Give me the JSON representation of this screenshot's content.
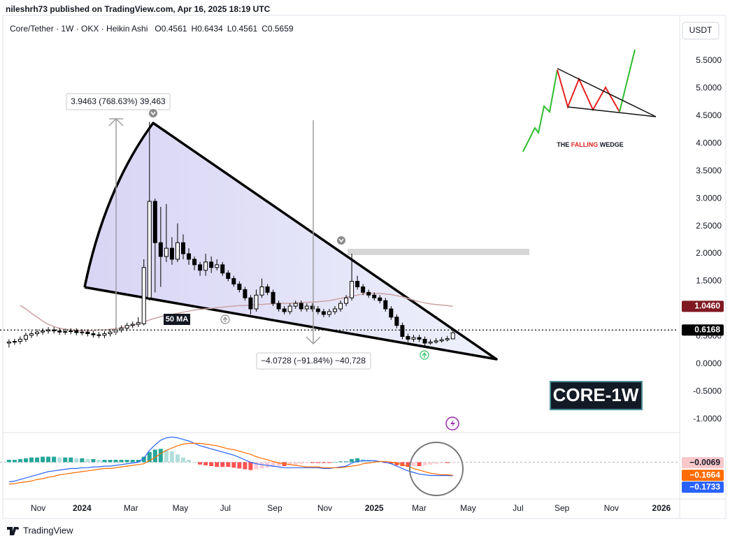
{
  "header": {
    "publisher": "nileshrh73 published on TradingView.com, Apr 16, 2025 18:19 UTC",
    "symbol": "Core/Tether · 1W · OKX · Heikin Ashi",
    "ohlc_letters": [
      "O",
      "H",
      "L",
      "C"
    ],
    "currency": "USDT",
    "footer": "TradingView"
  },
  "chart_data": [
    {
      "type": "candlestick",
      "x": [
        -13,
        -12,
        -11,
        -10,
        -9,
        -8,
        -7,
        -6,
        -5,
        -4,
        -3,
        -2,
        -1,
        0,
        1,
        2,
        3,
        4,
        5,
        6,
        7,
        8,
        9,
        10,
        11,
        12,
        13,
        14,
        15,
        16,
        17,
        18,
        19,
        20,
        21,
        22,
        23,
        24,
        25,
        26,
        27,
        28,
        29,
        30,
        31,
        32,
        33,
        34,
        35,
        36,
        37,
        38,
        39,
        40,
        41,
        42,
        43,
        44,
        45,
        46,
        47,
        48,
        49,
        50,
        51,
        52,
        53,
        54,
        55,
        56,
        57,
        58,
        59,
        60,
        61,
        62,
        63,
        64,
        65,
        66
      ],
      "open": [
        0.38,
        0.4,
        0.41,
        0.45,
        0.52,
        0.55,
        0.58,
        0.6,
        0.62,
        0.6,
        0.58,
        0.59,
        0.6,
        0.57,
        0.58,
        0.55,
        0.53,
        0.52,
        0.55,
        0.58,
        0.62,
        0.65,
        0.7,
        0.72,
        0.73,
        1.2,
        2.95,
        2.2,
        1.95,
        2.1,
        1.9,
        2.2,
        2.0,
        1.9,
        1.8,
        1.7,
        1.85,
        1.75,
        1.8,
        1.65,
        1.55,
        1.45,
        1.35,
        1.2,
        1.0,
        1.25,
        1.4,
        1.3,
        1.1,
        1.0,
        0.95,
        1.05,
        1.1,
        1.0,
        1.05,
        1.0,
        0.95,
        0.9,
        0.95,
        1.0,
        1.1,
        1.2,
        1.5,
        1.4,
        1.3,
        1.25,
        1.2,
        1.15,
        1.0,
        0.85,
        0.7,
        0.5,
        0.45,
        0.48,
        0.45,
        0.38,
        0.4,
        0.42,
        0.44,
        0.4561
      ],
      "high": [
        0.45,
        0.46,
        0.5,
        0.57,
        0.6,
        0.63,
        0.65,
        0.67,
        0.67,
        0.65,
        0.64,
        0.65,
        0.65,
        0.63,
        0.63,
        0.6,
        0.58,
        0.6,
        0.63,
        0.67,
        0.7,
        0.75,
        0.77,
        0.85,
        1.9,
        4.39,
        3.0,
        2.85,
        2.9,
        2.3,
        2.55,
        2.35,
        2.1,
        1.95,
        1.85,
        2.0,
        1.95,
        1.9,
        1.85,
        1.7,
        1.6,
        1.5,
        1.4,
        1.25,
        1.35,
        1.55,
        1.45,
        1.35,
        1.15,
        1.05,
        1.1,
        1.15,
        1.15,
        1.1,
        1.1,
        1.05,
        1.0,
        1.0,
        1.05,
        1.15,
        1.25,
        2.0,
        1.6,
        1.45,
        1.35,
        1.3,
        1.25,
        1.2,
        1.05,
        0.9,
        0.75,
        0.55,
        0.53,
        0.53,
        0.5,
        0.45,
        0.47,
        0.49,
        0.51,
        0.6434
      ],
      "low": [
        0.3,
        0.35,
        0.36,
        0.4,
        0.47,
        0.5,
        0.53,
        0.55,
        0.55,
        0.53,
        0.53,
        0.54,
        0.52,
        0.52,
        0.5,
        0.48,
        0.47,
        0.47,
        0.5,
        0.53,
        0.57,
        0.6,
        0.65,
        0.67,
        0.7,
        1.15,
        1.3,
        1.4,
        1.85,
        1.8,
        1.85,
        1.9,
        1.8,
        1.7,
        1.6,
        1.6,
        1.65,
        1.7,
        1.6,
        1.5,
        1.4,
        1.3,
        1.15,
        0.9,
        0.95,
        1.2,
        1.25,
        1.05,
        0.95,
        0.9,
        0.9,
        1.0,
        0.95,
        0.95,
        0.95,
        0.9,
        0.85,
        0.85,
        0.9,
        0.95,
        1.05,
        1.15,
        1.35,
        1.25,
        1.2,
        1.15,
        1.1,
        0.95,
        0.8,
        0.65,
        0.45,
        0.4,
        0.4,
        0.4,
        0.33,
        0.35,
        0.37,
        0.39,
        0.41,
        0.4561
      ],
      "close": [
        0.4,
        0.41,
        0.45,
        0.52,
        0.55,
        0.58,
        0.6,
        0.62,
        0.6,
        0.58,
        0.59,
        0.6,
        0.57,
        0.58,
        0.55,
        0.53,
        0.52,
        0.55,
        0.58,
        0.62,
        0.65,
        0.7,
        0.72,
        0.75,
        1.75,
        2.95,
        2.2,
        1.95,
        2.1,
        1.9,
        2.2,
        2.0,
        1.9,
        1.8,
        1.7,
        1.85,
        1.75,
        1.8,
        1.65,
        1.55,
        1.45,
        1.35,
        1.2,
        1.0,
        1.25,
        1.4,
        1.3,
        1.1,
        1.0,
        0.95,
        1.05,
        1.1,
        1.0,
        1.05,
        1.0,
        0.95,
        0.9,
        0.95,
        1.0,
        1.1,
        1.2,
        1.5,
        1.4,
        1.3,
        1.25,
        1.2,
        1.15,
        1.0,
        0.85,
        0.7,
        0.5,
        0.45,
        0.48,
        0.45,
        0.38,
        0.4,
        0.42,
        0.44,
        0.46,
        0.5659
      ],
      "up_color": "#ffffff",
      "down_color": "#000000",
      "wick_color": "#000000",
      "series": [
        {
          "name": "50 MA",
          "color": "#c9a3a3",
          "label_color": "#801922",
          "value_label": "1.0460",
          "values": [
            null,
            null,
            1.06,
            1.0,
            0.92,
            0.85,
            0.78,
            0.72,
            0.68,
            0.65,
            0.63,
            0.62,
            0.61,
            0.61,
            0.61,
            0.61,
            0.62,
            0.62,
            0.63,
            0.64,
            0.66,
            0.68,
            0.7,
            0.73,
            0.76,
            0.8,
            0.83,
            0.86,
            0.88,
            0.9,
            0.92,
            0.94,
            0.96,
            0.98,
            0.99,
            1.0,
            1.01,
            1.02,
            1.03,
            1.04,
            1.05,
            1.06,
            1.06,
            1.07,
            1.08,
            1.08,
            1.09,
            1.09,
            1.1,
            1.1,
            1.1,
            1.11,
            1.11,
            1.12,
            1.12,
            1.13,
            1.14,
            1.15,
            1.17,
            1.19,
            1.21,
            1.23,
            1.25,
            1.27,
            1.28,
            1.28,
            1.28,
            1.27,
            1.26,
            1.24,
            1.22,
            1.19,
            1.16,
            1.13,
            1.11,
            1.09,
            1.08,
            1.07,
            1.06,
            1.046
          ]
        }
      ],
      "last_price": 0.6168,
      "xlim": [
        -14.6,
        106.1
      ],
      "xticks": [
        {
          "value": -7.8,
          "label": "Nov"
        },
        {
          "value": 0,
          "label": "2024"
        },
        {
          "value": 8.7,
          "label": "Mar"
        },
        {
          "value": 17.5,
          "label": "May"
        },
        {
          "value": 25.5,
          "label": "Jul"
        },
        {
          "value": 34.3,
          "label": "Sep"
        },
        {
          "value": 43.2,
          "label": "Nov"
        },
        {
          "value": 52,
          "label": "2025"
        },
        {
          "value": 60,
          "label": "Mar"
        },
        {
          "value": 68.7,
          "label": "May"
        },
        {
          "value": 77.6,
          "label": "Jul"
        },
        {
          "value": 85.4,
          "label": "Sep"
        },
        {
          "value": 94.2,
          "label": "Nov"
        },
        {
          "value": 103.1,
          "label": "2026"
        }
      ],
      "ylim": [
        -1.23,
        6.41
      ],
      "yticks": [
        {
          "value": 5.5,
          "label": "5.5000"
        },
        {
          "value": 5,
          "label": "5.0000"
        },
        {
          "value": 4.5,
          "label": "4.5000"
        },
        {
          "value": 4,
          "label": "4.0000"
        },
        {
          "value": 3.5,
          "label": "3.5000"
        },
        {
          "value": 3,
          "label": "3.0000"
        },
        {
          "value": 2.5,
          "label": "2.5000"
        },
        {
          "value": 2,
          "label": "2.0000"
        },
        {
          "value": 1.5,
          "label": "1.5000"
        },
        {
          "value": 0.5,
          "label": "0.5000"
        },
        {
          "value": 0,
          "label": "0.0000"
        },
        {
          "value": -0.5,
          "label": "-0.5000"
        },
        {
          "value": -1,
          "label": "-1.0000"
        }
      ],
      "grid": false,
      "annotations": [
        "3.9463 (768.63%) 39,463",
        "−4.0728 (−91.84%) −40,728",
        "CORE-1W",
        "THE",
        "FALLING",
        "WEDGE"
      ]
    },
    {
      "type": "macd",
      "ylim": [
        -0.45,
        0.35
      ],
      "hist": [
        0.03,
        0.03,
        0.04,
        0.05,
        0.06,
        0.06,
        0.07,
        0.07,
        0.07,
        0.06,
        0.06,
        0.06,
        0.05,
        0.05,
        0.04,
        0.04,
        0.03,
        0.03,
        0.03,
        0.03,
        0.03,
        0.03,
        0.03,
        0.03,
        0.07,
        0.13,
        0.16,
        0.17,
        0.16,
        0.14,
        0.1,
        0.06,
        0.03,
        0.0,
        -0.03,
        -0.04,
        -0.05,
        -0.06,
        -0.06,
        -0.06,
        -0.07,
        -0.08,
        -0.09,
        -0.1,
        -0.09,
        -0.08,
        -0.07,
        -0.06,
        -0.05,
        -0.05,
        -0.04,
        -0.03,
        -0.02,
        -0.01,
        -0.01,
        -0.01,
        -0.01,
        -0.01,
        0.0,
        0.01,
        0.01,
        0.04,
        0.05,
        0.04,
        0.03,
        0.02,
        0.0,
        -0.01,
        -0.02,
        -0.04,
        -0.05,
        -0.06,
        -0.05,
        -0.05,
        -0.04,
        -0.03,
        -0.02,
        -0.01,
        -0.01,
        -0.0069
      ],
      "hist_colors": [
        "#26a69a",
        "#b2dfdb",
        "#ffcdd2",
        "#ff5252"
      ],
      "hist_label": "−0.0069",
      "hist_label_color": "#f8c8cb",
      "series": [
        {
          "color": "#2962ff",
          "label_color": "#2962ff",
          "value_label": "−0.1733",
          "values": [
            -0.25,
            -0.24,
            -0.22,
            -0.2,
            -0.18,
            -0.16,
            -0.14,
            -0.12,
            -0.11,
            -0.1,
            -0.09,
            -0.08,
            -0.08,
            -0.07,
            -0.07,
            -0.06,
            -0.06,
            -0.05,
            -0.05,
            -0.04,
            -0.03,
            -0.02,
            -0.01,
            0.0,
            0.05,
            0.15,
            0.22,
            0.28,
            0.31,
            0.32,
            0.31,
            0.29,
            0.27,
            0.24,
            0.21,
            0.19,
            0.17,
            0.15,
            0.13,
            0.11,
            0.09,
            0.06,
            0.03,
            0.0,
            -0.02,
            -0.03,
            -0.04,
            -0.05,
            -0.06,
            -0.07,
            -0.07,
            -0.07,
            -0.07,
            -0.07,
            -0.07,
            -0.07,
            -0.08,
            -0.08,
            -0.07,
            -0.06,
            -0.05,
            -0.01,
            0.01,
            0.02,
            0.02,
            0.02,
            0.01,
            0.0,
            -0.02,
            -0.05,
            -0.08,
            -0.11,
            -0.13,
            -0.15,
            -0.16,
            -0.17,
            -0.17,
            -0.17,
            -0.17,
            -0.1733
          ]
        },
        {
          "color": "#ff6d00",
          "label_color": "#ff6d00",
          "value_label": "−0.1664",
          "values": [
            -0.28,
            -0.27,
            -0.26,
            -0.25,
            -0.24,
            -0.22,
            -0.21,
            -0.19,
            -0.18,
            -0.16,
            -0.15,
            -0.14,
            -0.13,
            -0.12,
            -0.11,
            -0.1,
            -0.09,
            -0.08,
            -0.08,
            -0.07,
            -0.06,
            -0.05,
            -0.04,
            -0.03,
            -0.02,
            0.02,
            0.06,
            0.11,
            0.15,
            0.18,
            0.21,
            0.23,
            0.24,
            0.24,
            0.24,
            0.23,
            0.22,
            0.21,
            0.19,
            0.17,
            0.16,
            0.14,
            0.12,
            0.1,
            0.07,
            0.05,
            0.03,
            0.01,
            -0.01,
            -0.02,
            -0.03,
            -0.04,
            -0.05,
            -0.06,
            -0.06,
            -0.06,
            -0.07,
            -0.07,
            -0.07,
            -0.07,
            -0.06,
            -0.05,
            -0.04,
            -0.02,
            -0.01,
            0.0,
            0.01,
            0.01,
            0.0,
            -0.01,
            -0.03,
            -0.05,
            -0.08,
            -0.1,
            -0.12,
            -0.14,
            -0.15,
            -0.16,
            -0.16,
            -0.1664
          ]
        }
      ]
    }
  ]
}
